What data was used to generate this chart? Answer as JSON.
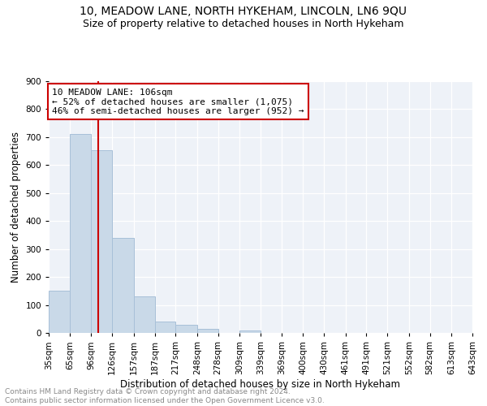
{
  "title": "10, MEADOW LANE, NORTH HYKEHAM, LINCOLN, LN6 9QU",
  "subtitle": "Size of property relative to detached houses in North Hykeham",
  "xlabel": "Distribution of detached houses by size in North Hykeham",
  "ylabel": "Number of detached properties",
  "bin_labels": [
    "35sqm",
    "65sqm",
    "96sqm",
    "126sqm",
    "157sqm",
    "187sqm",
    "217sqm",
    "248sqm",
    "278sqm",
    "309sqm",
    "339sqm",
    "369sqm",
    "400sqm",
    "430sqm",
    "461sqm",
    "491sqm",
    "521sqm",
    "552sqm",
    "582sqm",
    "613sqm",
    "643sqm"
  ],
  "bar_values": [
    150,
    712,
    652,
    340,
    130,
    42,
    30,
    14,
    0,
    8,
    0,
    0,
    0,
    0,
    0,
    0,
    0,
    0,
    0,
    0
  ],
  "bar_color": "#c9d9e8",
  "bar_edge_color": "#a8c0d8",
  "vline_x": 106,
  "vline_color": "#cc0000",
  "annotation_text": "10 MEADOW LANE: 106sqm\n← 52% of detached houses are smaller (1,075)\n46% of semi-detached houses are larger (952) →",
  "annotation_box_color": "#ffffff",
  "annotation_box_edge": "#cc0000",
  "ylim": [
    0,
    900
  ],
  "yticks": [
    0,
    100,
    200,
    300,
    400,
    500,
    600,
    700,
    800,
    900
  ],
  "bin_edges": [
    35,
    65,
    96,
    126,
    157,
    187,
    217,
    248,
    278,
    309,
    339,
    369,
    400,
    430,
    461,
    491,
    521,
    552,
    582,
    613,
    643
  ],
  "footnote": "Contains HM Land Registry data © Crown copyright and database right 2024.\nContains public sector information licensed under the Open Government Licence v3.0.",
  "bg_color": "#eef2f8",
  "title_fontsize": 10,
  "subtitle_fontsize": 9,
  "axis_label_fontsize": 8.5,
  "tick_fontsize": 7.5,
  "footnote_fontsize": 6.5
}
